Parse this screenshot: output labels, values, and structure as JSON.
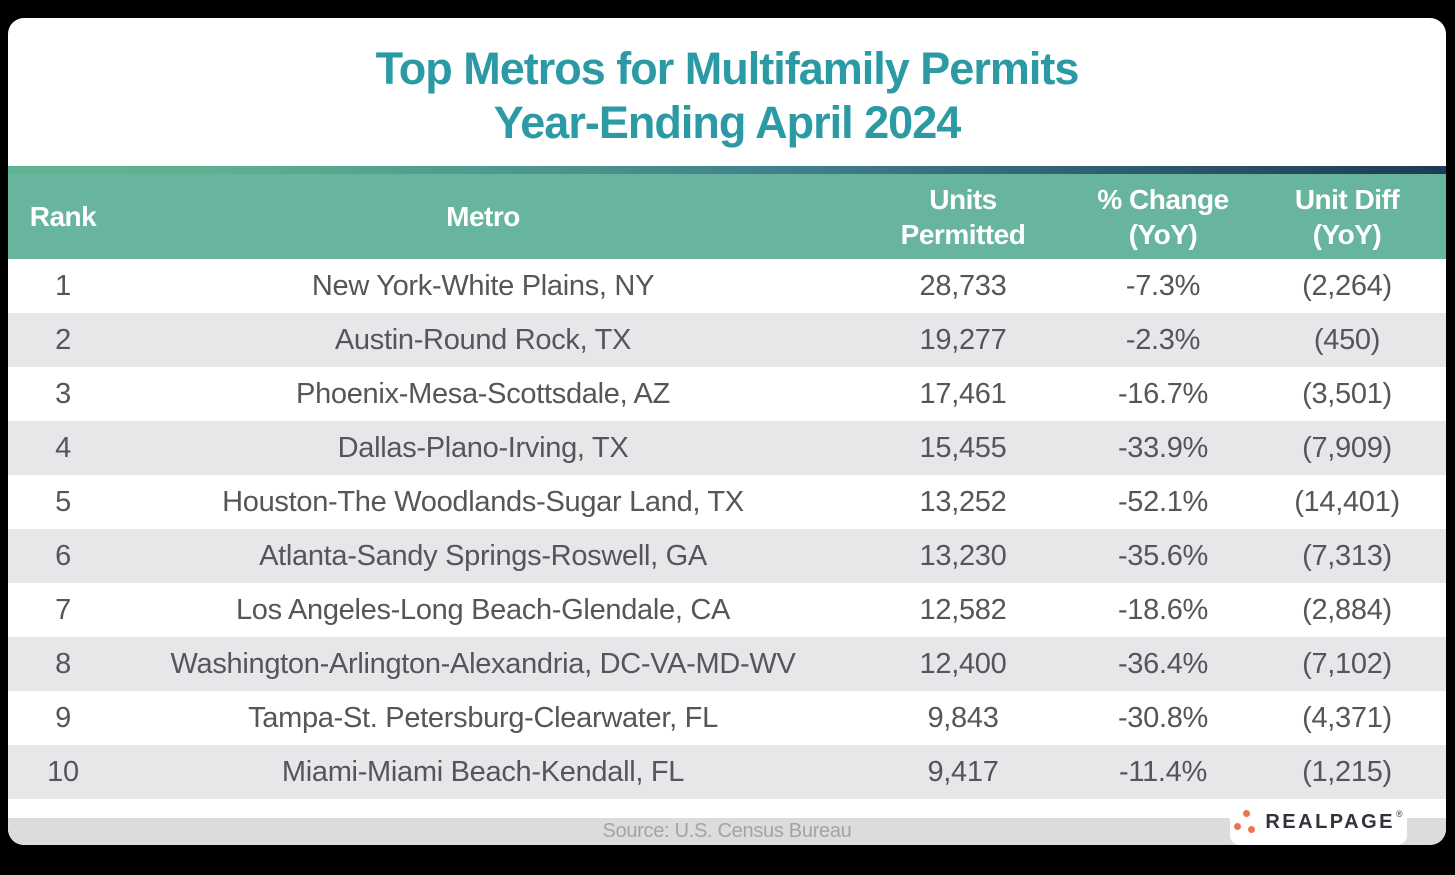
{
  "title": {
    "line1": "Top Metros for Multifamily Permits",
    "line2": "Year-Ending April 2024"
  },
  "table": {
    "headers": [
      "Rank",
      "Metro",
      "Units\nPermitted",
      "% Change\n(YoY)",
      "Unit Diff\n(YoY)"
    ],
    "rows": [
      {
        "rank": "1",
        "metro": "New York-White Plains, NY",
        "units": "28,733",
        "pct": "-7.3%",
        "diff": "(2,264)"
      },
      {
        "rank": "2",
        "metro": "Austin-Round Rock, TX",
        "units": "19,277",
        "pct": "-2.3%",
        "diff": "(450)"
      },
      {
        "rank": "3",
        "metro": "Phoenix-Mesa-Scottsdale, AZ",
        "units": "17,461",
        "pct": "-16.7%",
        "diff": "(3,501)"
      },
      {
        "rank": "4",
        "metro": "Dallas-Plano-Irving, TX",
        "units": "15,455",
        "pct": "-33.9%",
        "diff": "(7,909)"
      },
      {
        "rank": "5",
        "metro": "Houston-The Woodlands-Sugar Land, TX",
        "units": "13,252",
        "pct": "-52.1%",
        "diff": "(14,401)"
      },
      {
        "rank": "6",
        "metro": "Atlanta-Sandy Springs-Roswell, GA",
        "units": "13,230",
        "pct": "-35.6%",
        "diff": "(7,313)"
      },
      {
        "rank": "7",
        "metro": "Los Angeles-Long Beach-Glendale, CA",
        "units": "12,582",
        "pct": "-18.6%",
        "diff": "(2,884)"
      },
      {
        "rank": "8",
        "metro": "Washington-Arlington-Alexandria, DC-VA-MD-WV",
        "units": "12,400",
        "pct": "-36.4%",
        "diff": "(7,102)"
      },
      {
        "rank": "9",
        "metro": "Tampa-St. Petersburg-Clearwater, FL",
        "units": "9,843",
        "pct": "-30.8%",
        "diff": "(4,371)"
      },
      {
        "rank": "10",
        "metro": "Miami-Miami Beach-Kendall, FL",
        "units": "9,417",
        "pct": "-11.4%",
        "diff": "(1,215)"
      }
    ]
  },
  "footer": {
    "source": "Source: U.S. Census Bureau",
    "logo_text": "REALPAGE",
    "logo_mark": "®"
  },
  "colors": {
    "title_teal": "#2B9AA5",
    "header_green": "#67B59E",
    "gradient_start": "#60B291",
    "gradient_end": "#1E3A54",
    "row_alt_gray": "#E7E7E9",
    "body_text": "#54565A",
    "footer_bar": "#DCDCDE",
    "footer_text": "#A2A4A6",
    "logo_dot_coral": "#EE7350",
    "logo_text_dark": "#32323A",
    "page_background": "#000000"
  },
  "chart_data": {
    "type": "table",
    "title": "Top Metros for Multifamily Permits Year-Ending April 2024",
    "columns": [
      "Rank",
      "Metro",
      "Units Permitted",
      "% Change (YoY)",
      "Unit Diff (YoY)"
    ],
    "rows": [
      [
        1,
        "New York-White Plains, NY",
        28733,
        -7.3,
        -2264
      ],
      [
        2,
        "Austin-Round Rock, TX",
        19277,
        -2.3,
        -450
      ],
      [
        3,
        "Phoenix-Mesa-Scottsdale, AZ",
        17461,
        -16.7,
        -3501
      ],
      [
        4,
        "Dallas-Plano-Irving, TX",
        15455,
        -33.9,
        -7909
      ],
      [
        5,
        "Houston-The Woodlands-Sugar Land, TX",
        13252,
        -52.1,
        -14401
      ],
      [
        6,
        "Atlanta-Sandy Springs-Roswell, GA",
        13230,
        -35.6,
        -7313
      ],
      [
        7,
        "Los Angeles-Long Beach-Glendale, CA",
        12582,
        -18.6,
        -2884
      ],
      [
        8,
        "Washington-Arlington-Alexandria, DC-VA-MD-WV",
        12400,
        -36.4,
        -7102
      ],
      [
        9,
        "Tampa-St. Petersburg-Clearwater, FL",
        9843,
        -30.8,
        -4371
      ],
      [
        10,
        "Miami-Miami Beach-Kendall, FL",
        9417,
        -11.4,
        -1215
      ]
    ],
    "source": "Source: U.S. Census Bureau"
  }
}
